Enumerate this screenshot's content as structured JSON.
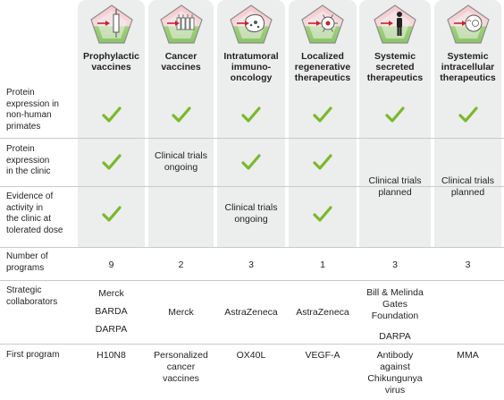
{
  "columns": [
    {
      "name": "Prophylactic\nvaccines",
      "icon": "syringe-icon",
      "num_programs": "9",
      "collaborators": [
        "Merck",
        "BARDA",
        "DARPA"
      ],
      "first_program": "H10N8"
    },
    {
      "name": "Cancer\nvaccines",
      "icon": "multiple-syringes-icon",
      "num_programs": "2",
      "collaborators": [
        "Merck"
      ],
      "first_program": "Personalized\ncancer\nvaccines"
    },
    {
      "name": "Intratumoral\nimmuno-\noncology",
      "icon": "tumor-cell-icon",
      "num_programs": "3",
      "collaborators": [
        "AstraZeneca"
      ],
      "first_program": "OX40L"
    },
    {
      "name": "Localized\nregenerative\ntherapeutics",
      "icon": "regenerative-cell-icon",
      "num_programs": "1",
      "collaborators": [
        "AstraZeneca"
      ],
      "first_program": "VEGF-A"
    },
    {
      "name": "Systemic\nsecreted\ntherapeutics",
      "icon": "human-figure-icon",
      "num_programs": "3",
      "collaborators": [
        "Bill & Melinda\nGates\nFoundation",
        "DARPA"
      ],
      "first_program": "Antibody\nagainst\nChikungunya\nvirus"
    },
    {
      "name": "Systemic\nintracellular\ntherapeutics",
      "icon": "intracellular-cell-icon",
      "num_programs": "3",
      "collaborators": [],
      "first_program": "MMA"
    }
  ],
  "rows": {
    "nhp": {
      "label": "Protein\nexpression in\nnon-human\nprimates",
      "status": [
        "check",
        "check",
        "check",
        "check",
        "check",
        "check"
      ]
    },
    "clinic": {
      "label": "Protein\nexpression\nin the clinic",
      "status": [
        "check",
        "Clinical trials\nongoing",
        "check",
        "check",
        "Clinical trials\nplanned",
        "Clinical trials\nplanned"
      ]
    },
    "activity": {
      "label": "Evidence of\nactivity in\nthe clinic at\ntolerated dose",
      "status": [
        "check",
        "",
        "Clinical trials\nongoing",
        "check",
        "",
        ""
      ]
    },
    "num_programs_label": "Number of\nprograms",
    "collaborators_label": "Strategic\ncollaborators",
    "first_program_label": "First program"
  },
  "colors": {
    "check_green": "#7ab929",
    "icon_red": "#c8232c",
    "column_bg": "#eceded",
    "divider": "#c9caca"
  }
}
